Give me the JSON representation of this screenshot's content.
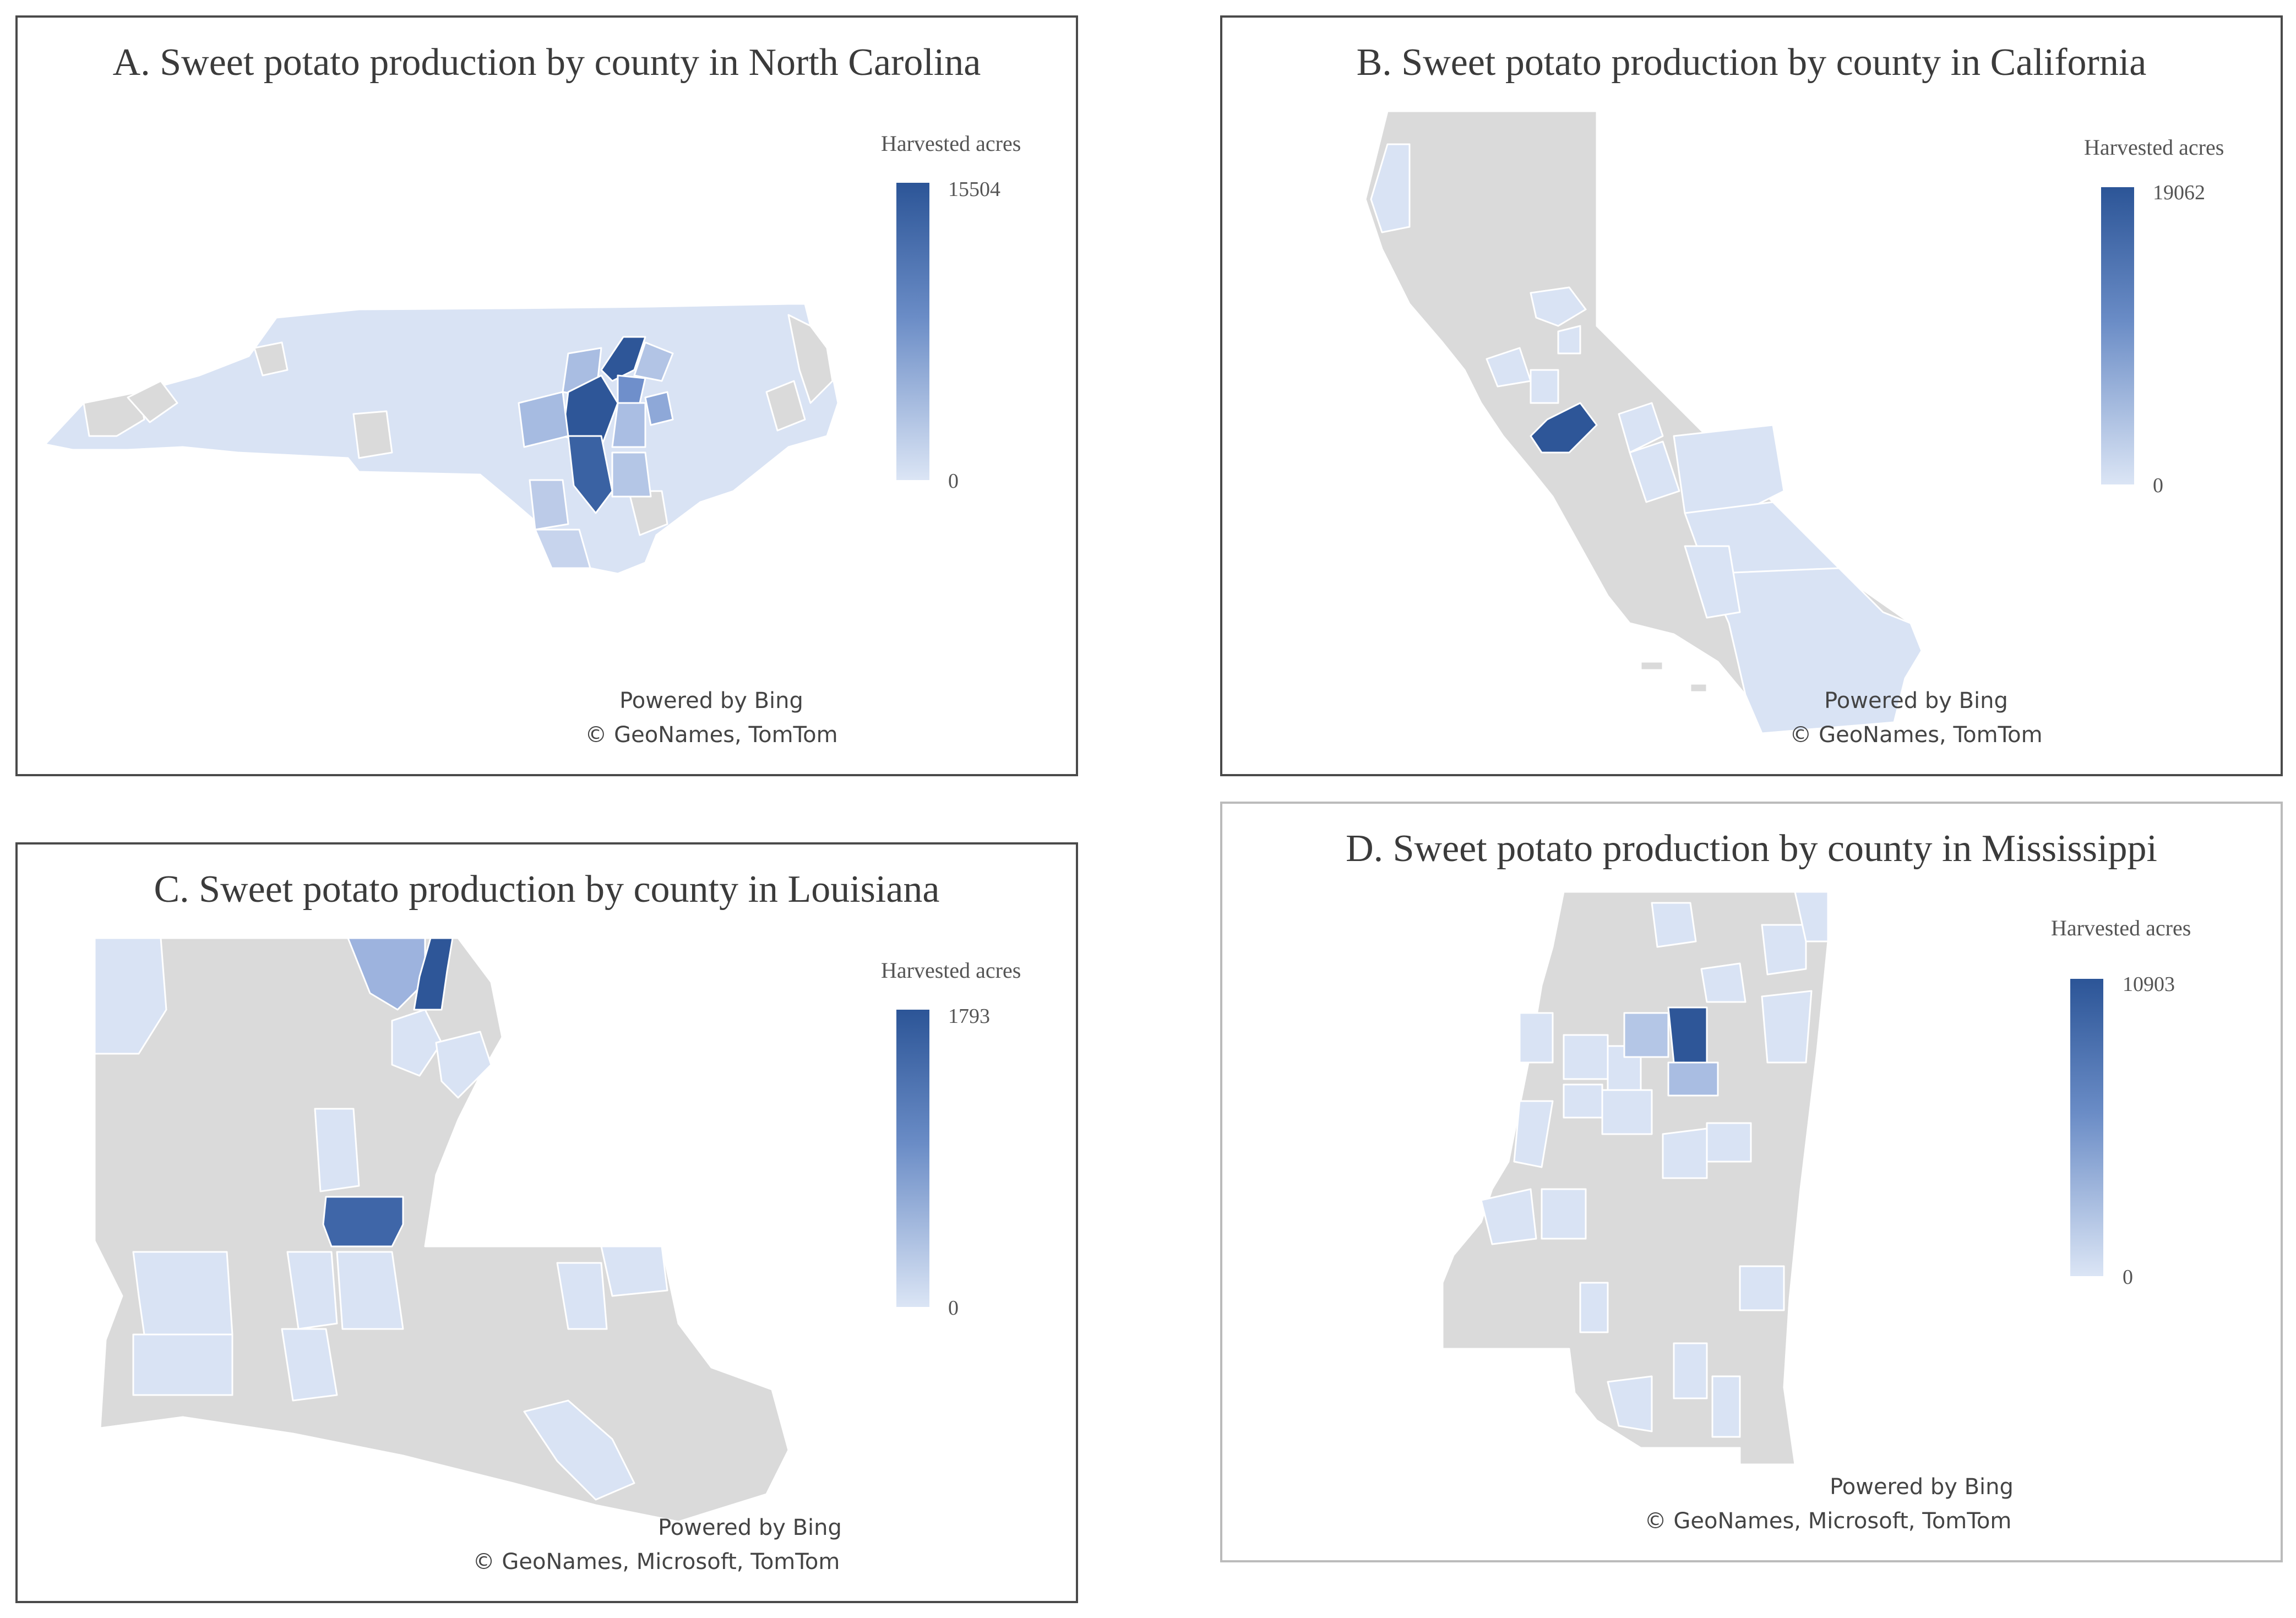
{
  "legend_gradient": [
    "#2c5597",
    "#6a8cc6",
    "#dbe5f5"
  ],
  "no_data_color": "#dadada",
  "panels": [
    {
      "id": "A",
      "title": "A. Sweet potato production by county in North Carolina",
      "state": "North Carolina",
      "legend": {
        "title": "Harvested acres",
        "max": "15504",
        "min": "0"
      },
      "credit_line1": "Powered by Bing",
      "credit_line2": "© GeoNames, TomTom"
    },
    {
      "id": "B",
      "title": "B. Sweet potato production by county in California",
      "state": "California",
      "legend": {
        "title": "Harvested acres",
        "max": "19062",
        "min": "0"
      },
      "credit_line1": "Powered by Bing",
      "credit_line2": "© GeoNames, TomTom"
    },
    {
      "id": "C",
      "title": "C. Sweet potato production by county in Louisiana",
      "state": "Louisiana",
      "legend": {
        "title": "Harvested acres",
        "max": "1793",
        "min": "0"
      },
      "credit_line1": "Powered by Bing",
      "credit_line2": "© GeoNames, Microsoft, TomTom"
    },
    {
      "id": "D",
      "title": "D. Sweet potato production by county in Mississippi",
      "state": "Mississippi",
      "legend": {
        "title": "Harvested acres",
        "max": "10903",
        "min": "0"
      },
      "credit_line1": "Powered by Bing",
      "credit_line2": "© GeoNames, Microsoft, TomTom"
    }
  ]
}
